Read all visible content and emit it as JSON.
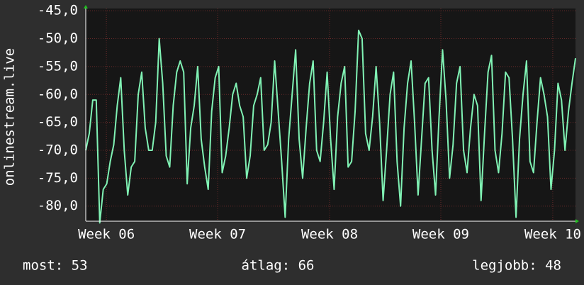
{
  "chart_data": {
    "type": "line",
    "y_label": "onlinestream.live",
    "values": [
      -70,
      -67,
      -61,
      -61,
      -83,
      -77,
      -76,
      -72,
      -69,
      -62,
      -57,
      -70,
      -78,
      -73,
      -72,
      -60,
      -56,
      -66,
      -70,
      -70,
      -65,
      -50,
      -58,
      -71,
      -73,
      -62,
      -56,
      -54,
      -56,
      -76,
      -66,
      -62,
      -55,
      -68,
      -73,
      -77,
      -63,
      -57,
      -55,
      -74,
      -71,
      -66,
      -60,
      -58,
      -62,
      -64,
      -75,
      -71,
      -62,
      -60,
      -57,
      -70,
      -69,
      -65,
      -54,
      -63,
      -72,
      -82,
      -68,
      -60,
      -52,
      -68,
      -75,
      -66,
      -58,
      -54,
      -70,
      -72,
      -65,
      -56,
      -68,
      -77,
      -64,
      -58,
      -55,
      -73,
      -72,
      -63,
      -48.5,
      -50,
      -67,
      -70,
      -64,
      -55,
      -65,
      -79,
      -70,
      -60,
      -56,
      -72,
      -80,
      -66,
      -58,
      -54,
      -65,
      -78,
      -68,
      -58,
      -57,
      -70,
      -78,
      -64,
      -52,
      -61,
      -75,
      -69,
      -58,
      -55,
      -70,
      -74,
      -66,
      -60,
      -62,
      -79,
      -67,
      -56,
      -53,
      -70,
      -74,
      -67,
      -56,
      -57,
      -68,
      -82,
      -68,
      -60,
      -54,
      -72,
      -74,
      -65,
      -57,
      -60,
      -64,
      -77,
      -70,
      -58,
      -61,
      -70,
      -63,
      -58,
      -53.5
    ],
    "color": "#80f2b4",
    "xlim": [
      0,
      140
    ],
    "xticks": [
      {
        "value": 5.9,
        "label": "Week 06"
      },
      {
        "value": 37.7,
        "label": "Week 07"
      },
      {
        "value": 69.7,
        "label": "Week 08"
      },
      {
        "value": 101.5,
        "label": "Week 09"
      },
      {
        "value": 133.5,
        "label": "Week 10"
      }
    ],
    "ylim": [
      -82.7,
      -44.6
    ],
    "yticks": [
      {
        "value": -45,
        "label": "-45,0"
      },
      {
        "value": -50,
        "label": "-50,0"
      },
      {
        "value": -55,
        "label": "-55,0"
      },
      {
        "value": -60,
        "label": "-60,0"
      },
      {
        "value": -65,
        "label": "-65,0"
      },
      {
        "value": -70,
        "label": "-70,0"
      },
      {
        "value": -75,
        "label": "-75,0"
      },
      {
        "value": -80,
        "label": "-80,0"
      }
    ],
    "grid": true,
    "footer": [
      "most: 53",
      "átlag: 66",
      "legjobb: 48"
    ]
  }
}
